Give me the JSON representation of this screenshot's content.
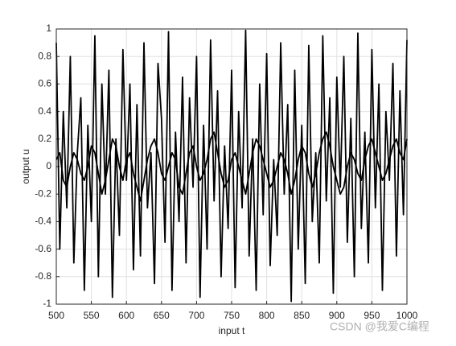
{
  "chart_data": {
    "type": "line",
    "xlabel": "input t",
    "ylabel": "output u",
    "x": [
      500,
      505,
      510,
      515,
      520,
      525,
      530,
      535,
      540,
      545,
      550,
      555,
      560,
      565,
      570,
      575,
      580,
      585,
      590,
      595,
      600,
      605,
      610,
      615,
      620,
      625,
      630,
      635,
      640,
      645,
      650,
      655,
      660,
      665,
      670,
      675,
      680,
      685,
      690,
      695,
      700,
      705,
      710,
      715,
      720,
      725,
      730,
      735,
      740,
      745,
      750,
      755,
      760,
      765,
      770,
      775,
      780,
      785,
      790,
      795,
      800,
      805,
      810,
      815,
      820,
      825,
      830,
      835,
      840,
      845,
      850,
      855,
      860,
      865,
      870,
      875,
      880,
      885,
      890,
      895,
      900,
      905,
      910,
      915,
      920,
      925,
      930,
      935,
      940,
      945,
      950,
      955,
      960,
      965,
      970,
      975,
      980,
      985,
      990,
      995,
      1000
    ],
    "series": [
      {
        "color": "#000000",
        "values": [
          0.9,
          -0.6,
          0.4,
          -0.3,
          0.8,
          -0.7,
          0.1,
          0.5,
          -0.9,
          0.3,
          -0.4,
          0.95,
          -0.8,
          0.6,
          -0.2,
          0.7,
          -0.95,
          0.2,
          -0.5,
          0.85,
          -0.1,
          0.6,
          -0.75,
          0.45,
          -0.65,
          0.9,
          -0.3,
          0.1,
          -0.85,
          0.75,
          0.35,
          -0.55,
          0.98,
          -0.9,
          0.25,
          -0.4,
          0.65,
          -0.7,
          0.5,
          -0.15,
          0.8,
          -0.95,
          0.3,
          -0.6,
          0.92,
          -0.25,
          0.55,
          -0.8,
          0.15,
          -0.45,
          0.7,
          -0.88,
          0.4,
          -0.3,
          0.99,
          -0.65,
          0.2,
          -0.9,
          0.6,
          -0.35,
          0.82,
          -0.72,
          0.05,
          -0.5,
          0.9,
          -0.2,
          0.45,
          -0.98,
          0.7,
          -0.6,
          0.3,
          -0.85,
          0.88,
          -0.4,
          0.1,
          -0.7,
          0.95,
          -0.25,
          0.5,
          -0.92,
          0.65,
          -0.15,
          0.8,
          -0.55,
          0.35,
          -0.8,
          0.97,
          -0.45,
          0.25,
          -0.7,
          0.85,
          -0.3,
          0.6,
          -0.9,
          0.4,
          -0.1,
          0.75,
          -0.65,
          0.55,
          -0.35,
          0.92
        ]
      },
      {
        "color": "#000000",
        "values": [
          0.05,
          0.1,
          -0.1,
          -0.15,
          0.0,
          0.1,
          0.05,
          -0.05,
          -0.1,
          0.0,
          0.15,
          0.1,
          -0.05,
          -0.2,
          -0.1,
          0.05,
          0.2,
          0.15,
          0.0,
          -0.1,
          0.05,
          0.1,
          -0.05,
          -0.15,
          -0.25,
          -0.1,
          0.05,
          0.15,
          0.2,
          0.1,
          -0.05,
          -0.1,
          0.0,
          0.1,
          0.05,
          -0.15,
          -0.2,
          -0.05,
          0.1,
          0.15,
          0.0,
          -0.1,
          -0.05,
          0.05,
          0.2,
          0.25,
          0.1,
          -0.05,
          -0.15,
          -0.1,
          0.05,
          0.1,
          0.0,
          -0.1,
          -0.2,
          -0.05,
          0.1,
          0.2,
          0.15,
          0.05,
          -0.05,
          -0.15,
          -0.1,
          0.0,
          0.1,
          0.05,
          -0.05,
          -0.2,
          -0.1,
          0.05,
          0.15,
          0.1,
          -0.05,
          -0.15,
          -0.05,
          0.1,
          0.2,
          0.25,
          0.15,
          0.0,
          -0.1,
          -0.2,
          -0.15,
          0.0,
          0.1,
          0.05,
          -0.05,
          -0.1,
          0.05,
          0.15,
          0.2,
          0.1,
          0.0,
          -0.1,
          -0.05,
          0.05,
          0.15,
          0.2,
          0.1,
          0.05,
          0.2
        ]
      }
    ],
    "xlim": [
      500,
      1000
    ],
    "xticks": [
      500,
      550,
      600,
      650,
      700,
      750,
      800,
      850,
      900,
      950,
      1000
    ],
    "ylim": [
      -1,
      1
    ],
    "yticks": [
      -1,
      -0.8,
      -0.6,
      -0.4,
      -0.2,
      0,
      0.2,
      0.4,
      0.6,
      0.8,
      1
    ],
    "grid": true,
    "watermark": "CSDN @我爱C编程"
  }
}
